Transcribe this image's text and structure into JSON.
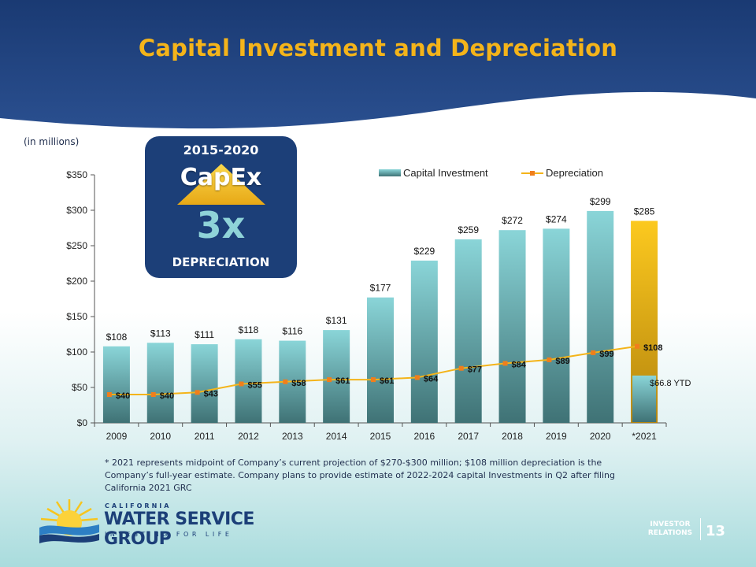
{
  "slide": {
    "title": "Capital Investment and Depreciation",
    "units": "(in millions)",
    "footnote": "* 2021 represents midpoint of Company’s current projection of $270-$300 million; $108 million depreciation is the Company’s full-year estimate. Company plans to provide estimate of 2022-2024 capital Investments in Q2 after filing California 2021 GRC",
    "page_number": "13",
    "investor_relations": "INVESTOR RELATIONS"
  },
  "callout": {
    "period": "2015-2020",
    "capex": "CapEx",
    "multiple": "3x",
    "depreciation": "DEPRECIATION"
  },
  "logo": {
    "top": "CALIFORNIA",
    "main": "WATER SERVICE GROUP",
    "tagline": "INVESTING FOR LIFE"
  },
  "colors": {
    "header_blue": "#1c3f78",
    "title_gold": "#f4b41a",
    "bar_top": "#88d3d6",
    "bar_bottom": "#3f7275",
    "projection_gold": "#f9c31f",
    "depreciation_line": "#f4b41a",
    "depreciation_marker": "#f07e1c"
  },
  "chart_data": {
    "type": "bar",
    "categories": [
      "2009",
      "2010",
      "2011",
      "2012",
      "2013",
      "2014",
      "2015",
      "2016",
      "2017",
      "2018",
      "2019",
      "2020",
      "*2021"
    ],
    "series": [
      {
        "name": "Capital Investment",
        "type": "bar",
        "values": [
          108,
          113,
          111,
          118,
          116,
          131,
          177,
          229,
          259,
          272,
          274,
          299,
          285
        ],
        "labels": [
          "$108",
          "$113",
          "$111",
          "$118",
          "$116",
          "$131",
          "$177",
          "$229",
          "$259",
          "$272",
          "$274",
          "$299",
          "$285"
        ]
      },
      {
        "name": "Depreciation",
        "type": "line",
        "values": [
          40,
          40,
          43,
          55,
          58,
          61,
          61,
          64,
          77,
          84,
          89,
          99,
          108
        ],
        "labels": [
          "$40",
          "$40",
          "$43",
          "$55",
          "$58",
          "$61",
          "$61",
          "$64",
          "$77",
          "$84",
          "$89",
          "$99",
          "$108"
        ]
      }
    ],
    "ytd_2021": {
      "value": 66.8,
      "label": "$66.8 YTD"
    },
    "y_ticks": [
      0,
      50,
      100,
      150,
      200,
      250,
      300,
      350
    ],
    "y_tick_labels": [
      "$0",
      "$50",
      "$100",
      "$150",
      "$200",
      "$250",
      "$300",
      "$350"
    ],
    "ylim": [
      0,
      350
    ],
    "legend_position": "top-right",
    "grid": false
  }
}
